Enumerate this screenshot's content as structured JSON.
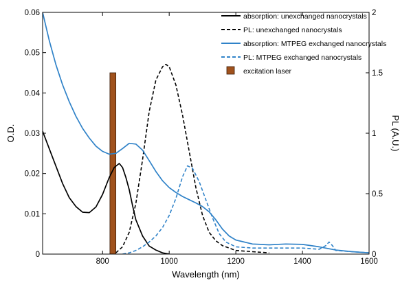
{
  "chart_data": {
    "type": "line",
    "xlabel": "Wavelength (nm)",
    "ylabel_left": "O.D.",
    "ylabel_right": "PL (A.U.)",
    "xlim": [
      620,
      1600
    ],
    "ylim_left": [
      0,
      0.06
    ],
    "ylim_right": [
      0,
      2
    ],
    "x_ticks": [
      800,
      1000,
      1200,
      1400,
      1600
    ],
    "x_tick_labels": [
      "800",
      "1000",
      "1200",
      "1400",
      "1600"
    ],
    "y_left_ticks": [
      0,
      0.01,
      0.02,
      0.03,
      0.04,
      0.05,
      0.06
    ],
    "y_left_tick_labels": [
      "0",
      "0.01",
      "0.02",
      "0.03",
      "0.04",
      "0.05",
      "0.06"
    ],
    "y_right_ticks": [
      0,
      0.5,
      1,
      1.5,
      2
    ],
    "y_right_tick_labels": [
      "0",
      "0.5",
      "1",
      "1.5",
      "2"
    ],
    "grid": false,
    "legend_position": "top-right",
    "colors": {
      "black": "#000000",
      "blue": "#2f82c8",
      "laser": "#a0521d"
    },
    "series": [
      {
        "name": "absorption: unexchanged nanocrystals",
        "axis": "left",
        "color": "#000000",
        "style": "solid",
        "x": [
          620,
          650,
          680,
          700,
          720,
          740,
          760,
          780,
          800,
          820,
          835,
          850,
          860,
          870,
          880,
          890,
          900,
          920,
          940,
          960,
          980,
          1000
        ],
        "y": [
          0.0305,
          0.024,
          0.0175,
          0.014,
          0.0118,
          0.0104,
          0.0103,
          0.0117,
          0.0148,
          0.019,
          0.0215,
          0.0225,
          0.0215,
          0.019,
          0.016,
          0.012,
          0.0085,
          0.0045,
          0.002,
          0.001,
          0.0003,
          0.0
        ]
      },
      {
        "name": "PL: unexchanged nanocrystals",
        "axis": "right",
        "color": "#000000",
        "style": "dashed",
        "x": [
          840,
          860,
          880,
          900,
          920,
          940,
          960,
          980,
          990,
          1000,
          1020,
          1040,
          1060,
          1080,
          1100,
          1120,
          1140,
          1160,
          1180,
          1200,
          1250,
          1300
        ],
        "y": [
          0.01,
          0.06,
          0.18,
          0.42,
          0.78,
          1.18,
          1.44,
          1.55,
          1.57,
          1.55,
          1.4,
          1.15,
          0.85,
          0.55,
          0.32,
          0.18,
          0.11,
          0.07,
          0.05,
          0.03,
          0.02,
          0.01
        ]
      },
      {
        "name": "absorption: MTPEG exchanged nanocrystals",
        "axis": "left",
        "color": "#2f82c8",
        "style": "solid",
        "x": [
          620,
          640,
          660,
          680,
          700,
          720,
          740,
          760,
          780,
          800,
          820,
          840,
          860,
          880,
          900,
          920,
          940,
          960,
          980,
          1000,
          1020,
          1040,
          1060,
          1080,
          1100,
          1120,
          1140,
          1160,
          1180,
          1200,
          1250,
          1300,
          1350,
          1400,
          1450,
          1500,
          1550,
          1600
        ],
        "y": [
          0.06,
          0.053,
          0.047,
          0.042,
          0.0378,
          0.0342,
          0.0312,
          0.0288,
          0.0268,
          0.0255,
          0.0248,
          0.025,
          0.0262,
          0.0275,
          0.0273,
          0.0258,
          0.0232,
          0.0205,
          0.0182,
          0.0165,
          0.0153,
          0.0143,
          0.0135,
          0.0127,
          0.0118,
          0.0105,
          0.0085,
          0.0062,
          0.0045,
          0.0035,
          0.0025,
          0.0023,
          0.0025,
          0.0024,
          0.0018,
          0.001,
          0.0006,
          0.0003
        ]
      },
      {
        "name": "PL: MTPEG exchanged nanocrystals",
        "axis": "right",
        "color": "#2f82c8",
        "style": "dashed",
        "x": [
          860,
          880,
          900,
          920,
          940,
          960,
          980,
          1000,
          1020,
          1040,
          1055,
          1070,
          1090,
          1110,
          1130,
          1150,
          1170,
          1200,
          1250,
          1300,
          1350,
          1400,
          1450,
          1470,
          1480,
          1490,
          1500,
          1550,
          1600
        ],
        "y": [
          0.0,
          0.01,
          0.03,
          0.06,
          0.1,
          0.15,
          0.22,
          0.32,
          0.46,
          0.64,
          0.73,
          0.71,
          0.6,
          0.45,
          0.3,
          0.17,
          0.1,
          0.06,
          0.05,
          0.05,
          0.05,
          0.05,
          0.04,
          0.07,
          0.1,
          0.07,
          0.03,
          0.02,
          0.01
        ]
      }
    ],
    "laser": {
      "name": "excitation laser",
      "axis": "right",
      "color": "#a0521d",
      "x_start": 822,
      "x_end": 840,
      "value": 1.5
    }
  }
}
